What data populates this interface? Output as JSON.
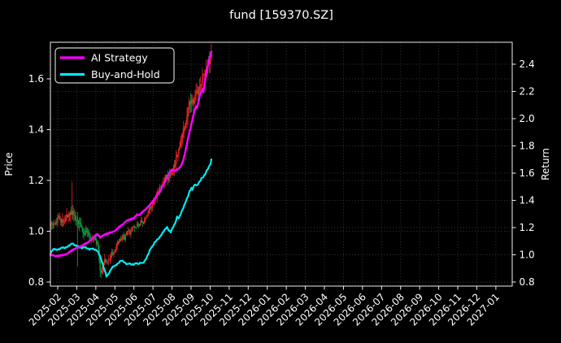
{
  "title": "fund [159370.SZ]",
  "legend": {
    "items": [
      {
        "label": "AI Strategy",
        "color": "#ff00ff"
      },
      {
        "label": "Buy-and-Hold",
        "color": "#00eaf0"
      }
    ]
  },
  "axes": {
    "left": {
      "label": "Price",
      "ticks": [
        "0.8",
        "1.0",
        "1.2",
        "1.4",
        "1.6"
      ]
    },
    "right": {
      "label": "Return",
      "ticks": [
        "0.8",
        "1.0",
        "1.2",
        "1.4",
        "1.6",
        "1.8",
        "2.0",
        "2.2",
        "2.4"
      ]
    },
    "x": {
      "labels": [
        "2025-02",
        "2025-03",
        "2025-04",
        "2025-05",
        "2025-06",
        "2025-07",
        "2025-08",
        "2025-09",
        "2025-10",
        "2025-11",
        "2025-12",
        "2026-01",
        "2026-02",
        "2026-03",
        "2026-04",
        "2026-05",
        "2026-06",
        "2026-07",
        "2026-08",
        "2026-09",
        "2026-10",
        "2026-11",
        "2026-12",
        "2027-01"
      ]
    }
  },
  "chart_data": {
    "type": "candlestick+line",
    "title": "fund [159370.SZ]",
    "xlabel": "",
    "ylabel_left": "Price",
    "ylabel_right": "Return",
    "grid": true,
    "legend_position": "upper-left",
    "background": "#000000",
    "spine_color": "#eeeeee",
    "grid_color": "#3a3a3a",
    "x_range_note": "monthly ticks 2025-02 through 2027-01; data spans ~2025-01-20 to ~2025-10-08 (days 0-178), rest of axis empty",
    "days": 178,
    "left_axis_ticks": [
      0.8,
      1.0,
      1.2,
      1.4,
      1.6
    ],
    "right_axis_ticks": [
      0.8,
      1.0,
      1.2,
      1.4,
      1.6,
      1.8,
      2.0,
      2.2,
      2.4
    ],
    "series": [
      {
        "name": "AI Strategy",
        "axis": "right",
        "color": "#ff00ff",
        "width": 2.4,
        "points": [
          [
            0,
            1.0
          ],
          [
            3,
            0.996
          ],
          [
            6,
            0.99
          ],
          [
            9,
            0.992
          ],
          [
            12,
            0.996
          ],
          [
            15,
            1.0
          ],
          [
            18,
            1.006
          ],
          [
            21,
            1.02
          ],
          [
            24,
            1.033
          ],
          [
            27,
            1.044
          ],
          [
            30,
            1.053
          ],
          [
            34,
            1.063
          ],
          [
            38,
            1.078
          ],
          [
            42,
            1.094
          ],
          [
            46,
            1.118
          ],
          [
            50,
            1.143
          ],
          [
            52,
            1.151
          ],
          [
            54,
            1.138
          ],
          [
            55,
            1.126
          ],
          [
            57,
            1.138
          ],
          [
            60,
            1.148
          ],
          [
            64,
            1.158
          ],
          [
            68,
            1.166
          ],
          [
            72,
            1.178
          ],
          [
            76,
            1.205
          ],
          [
            80,
            1.222
          ],
          [
            84,
            1.25
          ],
          [
            88,
            1.26
          ],
          [
            92,
            1.268
          ],
          [
            96,
            1.297
          ],
          [
            98,
            1.29
          ],
          [
            101,
            1.31
          ],
          [
            105,
            1.332
          ],
          [
            109,
            1.36
          ],
          [
            113,
            1.392
          ],
          [
            117,
            1.428
          ],
          [
            121,
            1.468
          ],
          [
            125,
            1.513
          ],
          [
            129,
            1.566
          ],
          [
            132,
            1.606
          ],
          [
            134,
            1.625
          ],
          [
            137,
            1.617
          ],
          [
            140,
            1.625
          ],
          [
            143,
            1.641
          ],
          [
            145,
            1.662
          ],
          [
            147,
            1.697
          ],
          [
            149,
            1.752
          ],
          [
            151,
            1.816
          ],
          [
            153,
            1.882
          ],
          [
            155,
            1.932
          ],
          [
            157,
            1.992
          ],
          [
            159,
            2.052
          ],
          [
            161,
            2.092
          ],
          [
            162,
            2.078
          ],
          [
            164,
            2.13
          ],
          [
            166,
            2.19
          ],
          [
            168,
            2.22
          ],
          [
            169,
            2.19
          ],
          [
            171,
            2.28
          ],
          [
            173,
            2.35
          ],
          [
            175,
            2.42
          ],
          [
            177,
            2.47
          ],
          [
            178,
            2.49
          ]
        ]
      },
      {
        "name": "Buy-and-Hold",
        "axis": "right",
        "color": "#00eaf0",
        "width": 2.2,
        "points": [
          [
            0,
            1.0
          ],
          [
            1,
            1.022
          ],
          [
            2,
            1.032
          ],
          [
            4,
            1.044
          ],
          [
            7,
            1.036
          ],
          [
            10,
            1.042
          ],
          [
            13,
            1.054
          ],
          [
            16,
            1.05
          ],
          [
            19,
            1.06
          ],
          [
            22,
            1.074
          ],
          [
            24,
            1.085
          ],
          [
            27,
            1.07
          ],
          [
            30,
            1.064
          ],
          [
            32,
            1.056
          ],
          [
            35,
            1.05
          ],
          [
            38,
            1.057
          ],
          [
            41,
            1.046
          ],
          [
            43,
            1.04
          ],
          [
            46,
            1.047
          ],
          [
            49,
            1.038
          ],
          [
            51,
            1.034
          ],
          [
            53,
            1.018
          ],
          [
            55,
            0.988
          ],
          [
            57,
            0.948
          ],
          [
            59,
            0.906
          ],
          [
            61,
            0.866
          ],
          [
            62,
            0.843
          ],
          [
            64,
            0.856
          ],
          [
            66,
            0.88
          ],
          [
            68,
            0.905
          ],
          [
            70,
            0.917
          ],
          [
            72,
            0.921
          ],
          [
            75,
            0.938
          ],
          [
            77,
            0.952
          ],
          [
            79,
            0.958
          ],
          [
            81,
            0.949
          ],
          [
            83,
            0.938
          ],
          [
            85,
            0.93
          ],
          [
            87,
            0.938
          ],
          [
            89,
            0.93
          ],
          [
            92,
            0.929
          ],
          [
            95,
            0.94
          ],
          [
            97,
            0.932
          ],
          [
            100,
            0.943
          ],
          [
            102,
            0.938
          ],
          [
            104,
            0.952
          ],
          [
            106,
            0.973
          ],
          [
            109,
            1.018
          ],
          [
            111,
            1.05
          ],
          [
            113,
            1.062
          ],
          [
            115,
            1.088
          ],
          [
            118,
            1.11
          ],
          [
            120,
            1.122
          ],
          [
            122,
            1.14
          ],
          [
            124,
            1.16
          ],
          [
            127,
            1.19
          ],
          [
            129,
            1.202
          ],
          [
            131,
            1.178
          ],
          [
            133,
            1.168
          ],
          [
            134,
            1.18
          ],
          [
            136,
            1.208
          ],
          [
            138,
            1.232
          ],
          [
            140,
            1.278
          ],
          [
            142,
            1.268
          ],
          [
            144,
            1.3
          ],
          [
            146,
            1.33
          ],
          [
            148,
            1.362
          ],
          [
            150,
            1.398
          ],
          [
            152,
            1.428
          ],
          [
            154,
            1.468
          ],
          [
            156,
            1.49
          ],
          [
            157,
            1.476
          ],
          [
            158,
            1.498
          ],
          [
            160,
            1.518
          ],
          [
            162,
            1.508
          ],
          [
            164,
            1.528
          ],
          [
            166,
            1.548
          ],
          [
            167,
            1.562
          ],
          [
            169,
            1.572
          ],
          [
            171,
            1.592
          ],
          [
            173,
            1.62
          ],
          [
            175,
            1.642
          ],
          [
            177,
            1.668
          ],
          [
            178,
            1.698
          ]
        ]
      }
    ],
    "candles": {
      "axis": "left",
      "up_color": "#f42525",
      "down_color": "#00a244",
      "closes": [
        [
          0,
          1.02
        ],
        [
          3,
          1.028
        ],
        [
          6,
          1.04
        ],
        [
          9,
          1.05
        ],
        [
          12,
          1.045
        ],
        [
          15,
          1.042
        ],
        [
          18,
          1.058
        ],
        [
          21,
          1.068
        ],
        [
          24,
          1.08
        ],
        [
          26,
          1.062
        ],
        [
          28,
          1.052
        ],
        [
          30,
          1.05
        ],
        [
          32,
          1.03
        ],
        [
          34,
          1.012
        ],
        [
          36,
          1.0
        ],
        [
          38,
          0.992
        ],
        [
          40,
          1.0
        ],
        [
          42,
          0.982
        ],
        [
          44,
          0.972
        ],
        [
          46,
          0.963
        ],
        [
          48,
          0.97
        ],
        [
          50,
          0.96
        ],
        [
          52,
          0.95
        ],
        [
          53,
          0.93
        ],
        [
          54,
          0.892
        ],
        [
          55,
          0.852
        ],
        [
          56,
          0.832
        ],
        [
          57,
          0.85
        ],
        [
          58,
          0.868
        ],
        [
          60,
          0.88
        ],
        [
          62,
          0.872
        ],
        [
          64,
          0.888
        ],
        [
          66,
          0.9
        ],
        [
          68,
          0.91
        ],
        [
          70,
          0.92
        ],
        [
          72,
          0.93
        ],
        [
          74,
          0.948
        ],
        [
          76,
          0.958
        ],
        [
          78,
          0.97
        ],
        [
          80,
          0.98
        ],
        [
          82,
          0.972
        ],
        [
          84,
          0.99
        ],
        [
          86,
          1.0
        ],
        [
          88,
          0.992
        ],
        [
          90,
          1.002
        ],
        [
          92,
          1.018
        ],
        [
          94,
          1.012
        ],
        [
          96,
          1.03
        ],
        [
          98,
          1.022
        ],
        [
          100,
          1.04
        ],
        [
          102,
          1.032
        ],
        [
          104,
          1.05
        ],
        [
          106,
          1.06
        ],
        [
          108,
          1.072
        ],
        [
          110,
          1.09
        ],
        [
          112,
          1.1
        ],
        [
          114,
          1.118
        ],
        [
          116,
          1.13
        ],
        [
          118,
          1.148
        ],
        [
          120,
          1.16
        ],
        [
          122,
          1.172
        ],
        [
          124,
          1.19
        ],
        [
          126,
          1.208
        ],
        [
          128,
          1.218
        ],
        [
          130,
          1.208
        ],
        [
          132,
          1.22
        ],
        [
          134,
          1.232
        ],
        [
          136,
          1.252
        ],
        [
          138,
          1.27
        ],
        [
          140,
          1.3
        ],
        [
          142,
          1.32
        ],
        [
          144,
          1.35
        ],
        [
          146,
          1.38
        ],
        [
          148,
          1.41
        ],
        [
          150,
          1.44
        ],
        [
          152,
          1.47
        ],
        [
          154,
          1.5
        ],
        [
          156,
          1.52
        ],
        [
          158,
          1.502
        ],
        [
          160,
          1.532
        ],
        [
          162,
          1.558
        ],
        [
          164,
          1.548
        ],
        [
          166,
          1.578
        ],
        [
          168,
          1.6
        ],
        [
          170,
          1.62
        ],
        [
          172,
          1.632
        ],
        [
          174,
          1.66
        ],
        [
          176,
          1.672
        ],
        [
          178,
          1.698
        ]
      ],
      "volatility": [
        [
          0,
          0.02
        ],
        [
          25,
          0.024
        ],
        [
          31,
          0.028
        ],
        [
          45,
          0.016
        ],
        [
          52,
          0.026
        ],
        [
          58,
          0.022
        ],
        [
          70,
          0.013
        ],
        [
          100,
          0.012
        ],
        [
          110,
          0.016
        ],
        [
          130,
          0.02
        ],
        [
          140,
          0.028
        ],
        [
          160,
          0.032
        ],
        [
          178,
          0.03
        ]
      ],
      "specials": [
        {
          "d": 24,
          "high": 1.195
        },
        {
          "d": 30,
          "low": 0.862,
          "open": 1.058
        },
        {
          "d": 55,
          "low": 0.82
        },
        {
          "d": 56,
          "low": 0.815
        }
      ]
    }
  }
}
